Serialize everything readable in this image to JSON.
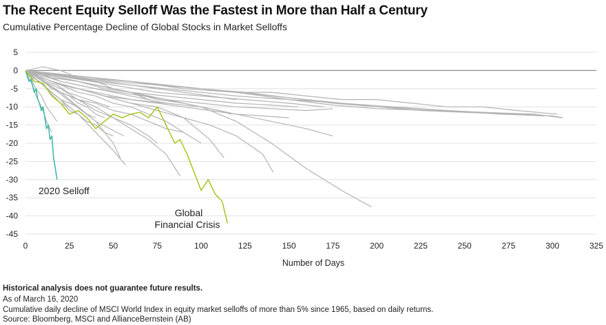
{
  "title": "The Recent Equity Selloff Was the Fastest in More than Half a Century",
  "subtitle": "Cumulative Percentage Decline of Global Stocks in Market Selloffs",
  "footnotes": {
    "disclaimer": "Historical analysis does not guarantee future results.",
    "as_of": "As of March 16, 2020",
    "description": "Cumulative daily decline of MSCI World Index in equity market selloffs of more than 5% since 1965, based on daily returns.",
    "source": "Source: Bloomberg, MSCI and AllianceBernstein (AB)"
  },
  "colors": {
    "history": "#b3b3b3",
    "selloff_2020": "#3fb8a6",
    "gfc": "#a6c828",
    "grid": "#d9d9d9",
    "zero": "#8c8c8c"
  },
  "chart_data": {
    "type": "line",
    "title": "The Recent Equity Selloff Was the Fastest in More than Half a Century",
    "subtitle": "Cumulative Percentage Decline of Global Stocks in Market Selloffs",
    "xlabel": "Number of Days",
    "ylabel": "",
    "xlim": [
      0,
      325
    ],
    "ylim": [
      -45,
      5
    ],
    "x_ticks": [
      "0",
      "25",
      "50",
      "75",
      "100",
      "125",
      "150",
      "175",
      "200",
      "225",
      "250",
      "275",
      "300",
      "325"
    ],
    "y_ticks": [
      "5",
      "0",
      "-5",
      "-10",
      "-15",
      "-20",
      "-25",
      "-30",
      "-35",
      "-40",
      "-45"
    ],
    "grid": "horizontal",
    "legend": "none",
    "annotations": [
      {
        "text": "2020 Selloff",
        "series": "2020 Selloff"
      },
      {
        "text": "Global",
        "series": "Global Financial Crisis"
      },
      {
        "text": "Financial Crisis",
        "series": "Global Financial Crisis"
      }
    ],
    "series": [
      {
        "name": "2020 Selloff",
        "highlight": "selloff_2020",
        "x": [
          0,
          1,
          2,
          3,
          4,
          5,
          6,
          7,
          8,
          9,
          10,
          11,
          12,
          13,
          14,
          15,
          16,
          17,
          18
        ],
        "y": [
          0,
          -1.5,
          -3,
          -2.5,
          -4,
          -6,
          -5,
          -8,
          -9,
          -11,
          -10,
          -13,
          -16,
          -15,
          -19,
          -18,
          -24,
          -27,
          -30
        ]
      },
      {
        "name": "Global Financial Crisis",
        "highlight": "gfc",
        "x": [
          0,
          5,
          10,
          15,
          20,
          25,
          30,
          35,
          40,
          45,
          50,
          55,
          60,
          65,
          70,
          75,
          80,
          85,
          88,
          92,
          96,
          100,
          104,
          108,
          112,
          115
        ],
        "y": [
          0,
          -3,
          -3.5,
          -7,
          -9,
          -12,
          -11,
          -13,
          -16,
          -14,
          -12,
          -13,
          -12,
          -11.5,
          -13,
          -10,
          -15,
          -20,
          -19,
          -23,
          -28,
          -33,
          -30,
          -34,
          -36,
          -42
        ]
      },
      {
        "x": [
          0,
          30,
          60,
          90,
          120,
          150,
          180,
          210,
          240,
          270,
          300,
          306
        ],
        "y": [
          0,
          -2,
          -3,
          -5,
          -6,
          -8,
          -9,
          -10,
          -11,
          -12,
          -12.5,
          -13
        ]
      },
      {
        "x": [
          0,
          25,
          50,
          75,
          100,
          125,
          150,
          175,
          200,
          225,
          250,
          275,
          295
        ],
        "y": [
          0,
          -1.5,
          -3,
          -4,
          -5,
          -6,
          -7.5,
          -9,
          -10,
          -11,
          -11.5,
          -12,
          -12.5
        ]
      },
      {
        "x": [
          0,
          40,
          80,
          120,
          150,
          175,
          200,
          230,
          260,
          290,
          305
        ],
        "y": [
          0,
          -3,
          -5,
          -7,
          -8,
          -9.5,
          -10.5,
          -11,
          -11.5,
          -12,
          -13
        ]
      },
      {
        "x": [
          0,
          20,
          40,
          60,
          80,
          100,
          120,
          140,
          160,
          175
        ],
        "y": [
          0,
          -3,
          -5,
          -6.5,
          -8,
          -9,
          -10,
          -10.5,
          -11,
          -10.5
        ]
      },
      {
        "x": [
          0,
          20,
          40,
          60,
          80,
          100,
          120,
          140,
          155
        ],
        "y": [
          0,
          -2,
          -4,
          -6,
          -7,
          -8,
          -9,
          -9.5,
          -10
        ]
      },
      {
        "x": [
          0,
          15,
          30,
          45,
          60,
          75,
          90,
          105,
          120,
          135,
          150
        ],
        "y": [
          0,
          -3,
          -5,
          -7,
          -8,
          -9,
          -10,
          -11,
          -12,
          -12.5,
          -13
        ]
      },
      {
        "x": [
          0,
          20,
          40,
          60,
          80,
          100,
          120,
          140,
          160,
          175
        ],
        "y": [
          0,
          -4,
          -6,
          -8,
          -9,
          -10,
          -12,
          -14,
          -16,
          -18
        ]
      },
      {
        "x": [
          0,
          20,
          40,
          60,
          80,
          100,
          120,
          140,
          160,
          180,
          195,
          197
        ],
        "y": [
          0,
          -2,
          -4,
          -6,
          -8,
          -10,
          -14,
          -20,
          -27,
          -33,
          -37,
          -37.5
        ]
      },
      {
        "x": [
          0,
          15,
          30,
          45,
          60,
          75,
          90,
          105,
          120,
          135,
          141
        ],
        "y": [
          0,
          -3,
          -5,
          -7,
          -9,
          -11,
          -13,
          -15,
          -18,
          -23,
          -28
        ]
      },
      {
        "x": [
          0,
          15,
          30,
          45,
          60,
          75,
          90,
          105,
          113
        ],
        "y": [
          0,
          -3,
          -5,
          -7,
          -9,
          -10,
          -13,
          -19,
          -24
        ]
      },
      {
        "x": [
          0,
          10,
          20,
          30,
          40,
          50,
          60,
          70,
          80,
          88
        ],
        "y": [
          0,
          -3,
          -6,
          -8,
          -11,
          -13,
          -16,
          -19,
          -23,
          -29
        ]
      },
      {
        "x": [
          0,
          10,
          20,
          30,
          40,
          50,
          57
        ],
        "y": [
          0,
          -4,
          -8,
          -12,
          -17,
          -22,
          -26
        ]
      },
      {
        "x": [
          0,
          10,
          20,
          30,
          40,
          50,
          54
        ],
        "y": [
          0,
          -3,
          -6,
          -10,
          -14,
          -20,
          -24
        ]
      },
      {
        "x": [
          0,
          10,
          20,
          30,
          40,
          50,
          60,
          70,
          75
        ],
        "y": [
          0,
          -3,
          -5,
          -8,
          -10,
          -13,
          -15,
          -18,
          -20
        ]
      },
      {
        "x": [
          0,
          10,
          20,
          30,
          40,
          50,
          60,
          70,
          80,
          90,
          100
        ],
        "y": [
          0,
          -2,
          -4,
          -6,
          -7,
          -9,
          -10,
          -12,
          -14,
          -17,
          -20
        ]
      },
      {
        "x": [
          0,
          8,
          16,
          24,
          32,
          40,
          48,
          56
        ],
        "y": [
          0,
          -2,
          -5,
          -8,
          -11,
          -14,
          -16,
          -18
        ]
      },
      {
        "x": [
          0,
          5,
          10,
          15,
          20,
          25,
          30,
          35,
          40,
          45,
          50
        ],
        "y": [
          0,
          -2,
          -4,
          -6,
          -8,
          -11,
          -12,
          -14,
          -15,
          -17,
          -18
        ]
      },
      {
        "x": [
          0,
          10,
          20,
          30,
          40,
          50,
          60,
          65,
          70
        ],
        "y": [
          0,
          1,
          0,
          -2,
          -3,
          -5,
          -6,
          -7,
          -8
        ]
      },
      {
        "x": [
          0,
          10,
          20,
          30,
          40,
          50,
          60,
          70,
          80,
          90,
          100,
          110,
          117
        ],
        "y": [
          0,
          -1,
          -2,
          -3,
          -4,
          -5,
          -6,
          -7,
          -8,
          -9,
          -10,
          -11,
          -12
        ]
      },
      {
        "x": [
          0,
          5,
          10,
          15,
          20,
          25,
          30,
          35,
          40
        ],
        "y": [
          0,
          -2,
          -4,
          -6,
          -8,
          -9,
          -10,
          -12,
          -13
        ]
      },
      {
        "x": [
          0,
          5,
          10,
          15,
          20,
          25,
          30
        ],
        "y": [
          0,
          -2,
          -4,
          -6,
          -8,
          -10,
          -12
        ]
      },
      {
        "x": [
          0,
          4,
          8,
          12,
          16,
          20,
          24
        ],
        "y": [
          0,
          -2,
          -3,
          -5,
          -7,
          -9,
          -10
        ]
      },
      {
        "x": [
          0,
          3,
          6,
          9,
          12,
          15,
          18
        ],
        "y": [
          0,
          -2,
          -5,
          -7,
          -10,
          -12,
          -14
        ]
      },
      {
        "x": [
          0,
          2,
          4,
          6,
          8,
          10,
          12,
          15
        ],
        "y": [
          0,
          -2,
          -4,
          -7,
          -9,
          -11,
          -14,
          -17
        ]
      },
      {
        "x": [
          0,
          10,
          20,
          30,
          40,
          50,
          60,
          70,
          80
        ],
        "y": [
          0,
          -1,
          -3,
          -4,
          -5,
          -6,
          -7,
          -8,
          -9
        ]
      },
      {
        "x": [
          0,
          15,
          30,
          45,
          60,
          75,
          90,
          105,
          120
        ],
        "y": [
          0,
          -1,
          -2,
          -3,
          -4,
          -5,
          -6,
          -7,
          -8
        ]
      },
      {
        "x": [
          0,
          20,
          40,
          60,
          80,
          100,
          120,
          140,
          160,
          180,
          200,
          220,
          240,
          260,
          280,
          300
        ],
        "y": [
          0,
          -1,
          -2,
          -3,
          -4,
          -5,
          -6,
          -7,
          -8,
          -9,
          -10,
          -10.5,
          -11,
          -11.5,
          -12,
          -12.5
        ]
      },
      {
        "x": [
          0,
          20,
          40,
          60,
          80,
          100,
          120,
          140,
          160,
          180,
          200,
          220,
          240,
          260,
          280,
          303
        ],
        "y": [
          0,
          -1,
          -2,
          -3,
          -4,
          -5,
          -6,
          -6,
          -7,
          -8,
          -8,
          -9,
          -10,
          -10,
          -11,
          -12
        ]
      },
      {
        "x": [
          0,
          6,
          12,
          18,
          24,
          30,
          36,
          42,
          48
        ],
        "y": [
          0,
          -1,
          -3,
          -4,
          -6,
          -7,
          -8,
          -9,
          -10
        ]
      },
      {
        "x": [
          0,
          15,
          30,
          45,
          60,
          75,
          90
        ],
        "y": [
          0,
          -2,
          -3,
          -5,
          -6,
          -8,
          -9
        ]
      },
      {
        "x": [
          0,
          10,
          20,
          30,
          40,
          50,
          60,
          70,
          80,
          90
        ],
        "y": [
          0,
          -3,
          -6,
          -8,
          -9,
          -11,
          -12,
          -14,
          -16,
          -17
        ]
      },
      {
        "x": [
          0,
          25,
          50,
          75,
          100,
          125,
          150,
          170
        ],
        "y": [
          0,
          -2,
          -4,
          -6,
          -7,
          -8,
          -9,
          -10
        ]
      },
      {
        "x": [
          0,
          5,
          10,
          15,
          20,
          25,
          30,
          35,
          40,
          45
        ],
        "y": [
          0,
          -1,
          -3,
          -5,
          -6,
          -7,
          -9,
          -10,
          -12,
          -13
        ]
      }
    ]
  }
}
